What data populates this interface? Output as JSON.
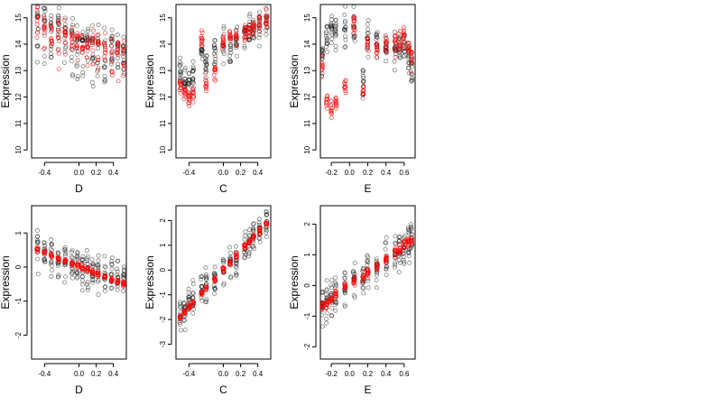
{
  "chart_data": [
    {
      "type": "scatter",
      "row": 0,
      "col": 0,
      "xlabel": "D",
      "ylabel": "Expression",
      "xlim": [
        -0.55,
        0.55
      ],
      "ylim": [
        9.7,
        15.5
      ],
      "xticks": [
        -0.4,
        0.0,
        0.2,
        0.4
      ],
      "xtick_labels": [
        "-0.4",
        "0.0",
        "0.2",
        "0.4"
      ],
      "yticks": [
        10,
        11,
        12,
        13,
        14,
        15
      ],
      "ytick_labels": [
        "10",
        "11",
        "12",
        "13",
        "14",
        "15"
      ],
      "x_groups": [
        -0.48,
        -0.4,
        -0.32,
        -0.24,
        -0.16,
        -0.08,
        -0.02,
        0.04,
        0.1,
        0.16,
        0.22,
        0.3,
        0.38,
        0.45,
        0.52
      ],
      "observed": {
        "color": "#000000",
        "trend": [
          15.0,
          14.85,
          14.7,
          14.55,
          14.4,
          14.25,
          14.15,
          14.05,
          14.0,
          13.95,
          13.9,
          13.85,
          13.8,
          13.75,
          13.7
        ],
        "spread": 1.6,
        "skew": -1
      },
      "fitted": {
        "color": "#ff0000",
        "trend": [
          14.8,
          14.7,
          14.5,
          14.4,
          14.3,
          14.2,
          14.1,
          14.05,
          14.0,
          13.95,
          13.9,
          13.85,
          13.8,
          13.75,
          13.7
        ],
        "spread": 1.2,
        "skew": -1
      }
    },
    {
      "type": "scatter",
      "row": 0,
      "col": 1,
      "xlabel": "C",
      "ylabel": "Expression",
      "xlim": [
        -0.55,
        0.55
      ],
      "ylim": [
        9.7,
        15.5
      ],
      "xticks": [
        -0.4,
        0.0,
        0.2,
        0.4
      ],
      "xtick_labels": [
        "-0.4",
        "0.0",
        "0.2",
        "0.4"
      ],
      "yticks": [
        10,
        11,
        12,
        13,
        14,
        15
      ],
      "ytick_labels": [
        "10",
        "11",
        "12",
        "13",
        "14",
        "15"
      ],
      "x_groups": [
        -0.5,
        -0.45,
        -0.4,
        -0.35,
        -0.25,
        -0.2,
        -0.1,
        0.0,
        0.08,
        0.15,
        0.25,
        0.3,
        0.35,
        0.42,
        0.5
      ],
      "observed": {
        "color": "#000000",
        "trend": [
          12.8,
          12.6,
          12.5,
          12.8,
          13.8,
          13.2,
          13.8,
          13.9,
          14.0,
          14.2,
          14.4,
          14.5,
          14.6,
          14.7,
          14.8
        ],
        "spread": 1.5,
        "skew": 0
      },
      "fitted": {
        "color": "#ff0000",
        "trend": [
          12.5,
          12.2,
          12.0,
          12.0,
          14.2,
          12.5,
          13.0,
          14.1,
          14.3,
          14.3,
          14.4,
          14.5,
          14.6,
          14.7,
          14.9
        ],
        "spread": 0.8,
        "skew": 0
      }
    },
    {
      "type": "scatter",
      "row": 0,
      "col": 2,
      "xlabel": "E",
      "ylabel": "Expression",
      "xlim": [
        -0.32,
        0.72
      ],
      "ylim": [
        9.7,
        15.5
      ],
      "xticks": [
        -0.2,
        0.0,
        0.2,
        0.4,
        0.6
      ],
      "xtick_labels": [
        "-0.2",
        "0.0",
        "0.2",
        "0.4",
        "0.6"
      ],
      "yticks": [
        10,
        11,
        12,
        13,
        14,
        15
      ],
      "ytick_labels": [
        "10",
        "11",
        "12",
        "13",
        "14",
        "15"
      ],
      "x_groups": [
        -0.3,
        -0.25,
        -0.2,
        -0.15,
        -0.05,
        0.05,
        0.15,
        0.2,
        0.3,
        0.4,
        0.5,
        0.55,
        0.6,
        0.65,
        0.68
      ],
      "observed": {
        "color": "#000000",
        "trend": [
          13.5,
          14.2,
          14.4,
          14.5,
          14.6,
          14.7,
          12.5,
          14.2,
          14.0,
          13.9,
          13.8,
          13.9,
          14.0,
          13.5,
          13.2
        ],
        "spread": 1.6,
        "skew": 0
      },
      "fitted": {
        "color": "#ff0000",
        "trend": [
          13.2,
          11.8,
          11.5,
          11.8,
          12.5,
          14.8,
          12.2,
          14.0,
          13.8,
          13.9,
          14.0,
          14.1,
          14.2,
          13.8,
          13.4
        ],
        "spread": 1.0,
        "skew": 0
      }
    },
    {
      "type": "scatter",
      "row": 1,
      "col": 0,
      "xlabel": "D",
      "ylabel": "Expression",
      "xlim": [
        -0.55,
        0.55
      ],
      "ylim": [
        -2.7,
        1.8
      ],
      "xticks": [
        -0.4,
        0.0,
        0.2,
        0.4
      ],
      "xtick_labels": [
        "-0.4",
        "0.0",
        "0.2",
        "0.4"
      ],
      "yticks": [
        -2,
        -1,
        0,
        1
      ],
      "ytick_labels": [
        "-2",
        "-1",
        "0",
        "1"
      ],
      "x_groups": [
        -0.48,
        -0.4,
        -0.32,
        -0.24,
        -0.16,
        -0.08,
        -0.02,
        0.04,
        0.1,
        0.16,
        0.22,
        0.3,
        0.38,
        0.45,
        0.52
      ],
      "observed": {
        "color": "#000000",
        "trend": [
          0.5,
          0.4,
          0.3,
          0.25,
          0.2,
          0.1,
          0.0,
          -0.05,
          -0.1,
          -0.15,
          -0.2,
          -0.25,
          -0.3,
          -0.35,
          -0.4
        ],
        "spread": 1.4,
        "skew": 0
      },
      "fitted": {
        "color": "#ff0000",
        "trend": [
          0.5,
          0.42,
          0.34,
          0.26,
          0.18,
          0.1,
          0.04,
          -0.02,
          -0.08,
          -0.14,
          -0.2,
          -0.28,
          -0.36,
          -0.43,
          -0.5
        ],
        "spread": 0.18,
        "skew": 0
      }
    },
    {
      "type": "scatter",
      "row": 1,
      "col": 1,
      "xlabel": "C",
      "ylabel": "Expression",
      "xlim": [
        -0.55,
        0.55
      ],
      "ylim": [
        -3.6,
        2.6
      ],
      "xticks": [
        -0.4,
        0.0,
        0.2,
        0.4
      ],
      "xtick_labels": [
        "-0.4",
        "0.0",
        "0.2",
        "0.4"
      ],
      "yticks": [
        -3,
        -2,
        -1,
        0,
        1,
        2
      ],
      "ytick_labels": [
        "-3",
        "-2",
        "-1",
        "0",
        "1",
        "2"
      ],
      "x_groups": [
        -0.5,
        -0.45,
        -0.4,
        -0.35,
        -0.25,
        -0.2,
        -0.1,
        0.0,
        0.08,
        0.15,
        0.25,
        0.3,
        0.35,
        0.42,
        0.5
      ],
      "observed": {
        "color": "#000000",
        "trend": [
          -1.9,
          -1.6,
          -1.4,
          -1.2,
          -0.8,
          -0.7,
          -0.3,
          0.1,
          0.3,
          0.5,
          0.9,
          1.1,
          1.3,
          1.6,
          1.9
        ],
        "spread": 1.6,
        "skew": 0
      },
      "fitted": {
        "color": "#ff0000",
        "trend": [
          -1.9,
          -1.7,
          -1.5,
          -1.3,
          -0.9,
          -0.75,
          -0.4,
          0.0,
          0.3,
          0.55,
          0.95,
          1.15,
          1.35,
          1.6,
          1.9
        ],
        "spread": 0.3,
        "skew": 0
      }
    },
    {
      "type": "scatter",
      "row": 1,
      "col": 2,
      "xlabel": "E",
      "ylabel": "Expression",
      "xlim": [
        -0.32,
        0.72
      ],
      "ylim": [
        -2.4,
        2.6
      ],
      "xticks": [
        -0.2,
        0.0,
        0.2,
        0.4,
        0.6
      ],
      "xtick_labels": [
        "-0.2",
        "0.0",
        "0.2",
        "0.4",
        "0.6"
      ],
      "yticks": [
        -2,
        -1,
        0,
        1,
        2
      ],
      "ytick_labels": [
        "-2",
        "-1",
        "0",
        "1",
        "2"
      ],
      "x_groups": [
        -0.3,
        -0.25,
        -0.2,
        -0.15,
        -0.05,
        0.05,
        0.15,
        0.2,
        0.3,
        0.4,
        0.5,
        0.55,
        0.6,
        0.65,
        0.68
      ],
      "observed": {
        "color": "#000000",
        "trend": [
          -0.8,
          -0.6,
          -0.5,
          -0.4,
          -0.1,
          0.1,
          0.2,
          0.4,
          0.6,
          0.8,
          1.0,
          1.2,
          1.3,
          1.4,
          1.5
        ],
        "spread": 1.6,
        "skew": 0
      },
      "fitted": {
        "color": "#ff0000",
        "trend": [
          -0.7,
          -0.6,
          -0.45,
          -0.3,
          -0.05,
          0.15,
          0.3,
          0.45,
          0.65,
          0.85,
          1.05,
          1.2,
          1.3,
          1.4,
          1.5
        ],
        "spread": 0.35,
        "skew": 0
      }
    }
  ]
}
